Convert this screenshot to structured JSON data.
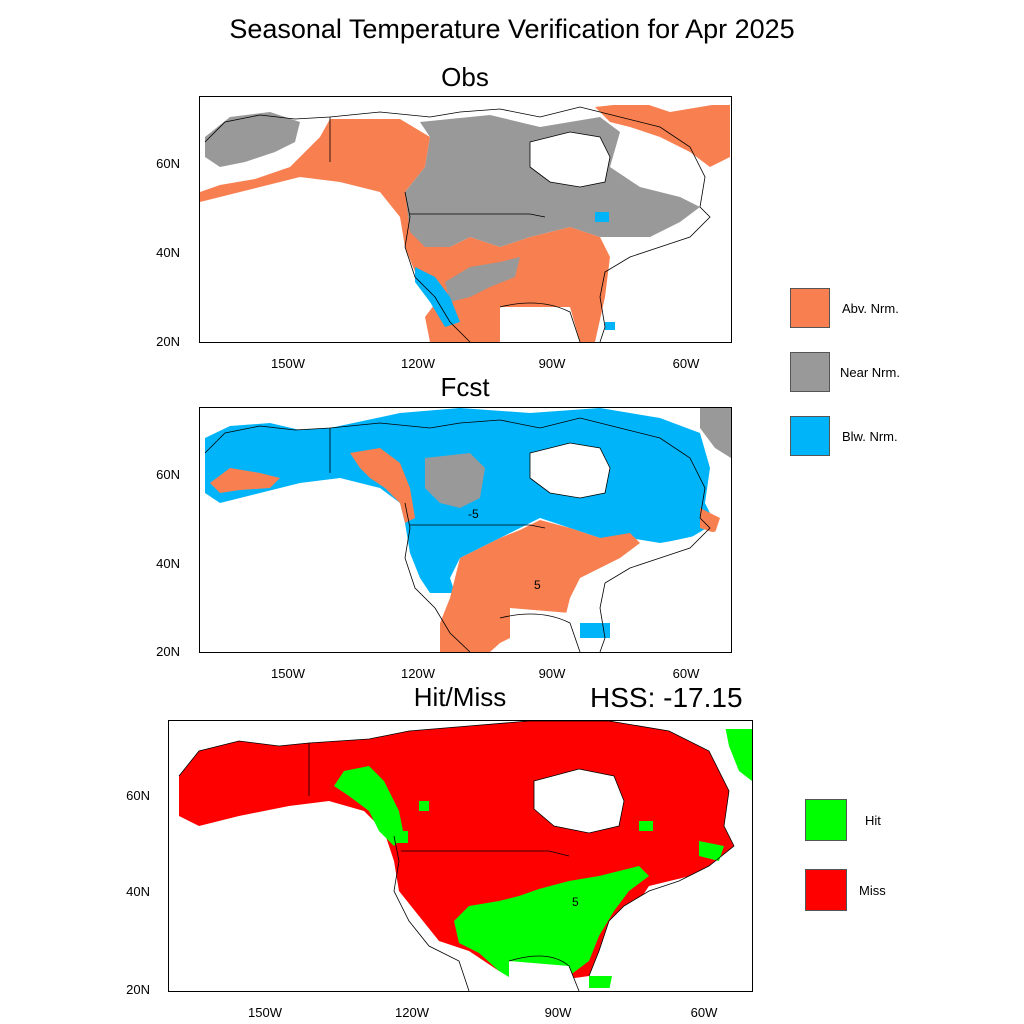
{
  "title": "Seasonal Temperature Verification for Apr 2025",
  "colors": {
    "above": "#f77f50",
    "near": "#999999",
    "below": "#00b4fa",
    "hit": "#00ff00",
    "miss": "#ff0000",
    "land_outline": "#000000"
  },
  "panels": {
    "obs": {
      "title": "Obs",
      "lat_labels": [
        "60N",
        "40N",
        "20N"
      ],
      "lon_labels": [
        "150W",
        "120W",
        "90W",
        "60W"
      ]
    },
    "fcst": {
      "title": "Fcst",
      "lat_labels": [
        "60N",
        "40N",
        "20N"
      ],
      "lon_labels": [
        "150W",
        "120W",
        "90W",
        "60W"
      ],
      "contour_labels": [
        "-5",
        "5"
      ]
    },
    "hitmiss": {
      "title": "Hit/Miss",
      "score": "HSS: -17.15",
      "lat_labels": [
        "60N",
        "40N",
        "20N"
      ],
      "lon_labels": [
        "150W",
        "120W",
        "90W",
        "60W"
      ],
      "contour_labels": [
        "5"
      ]
    }
  },
  "legend_terciles": [
    {
      "label": "Abv. Nrm.",
      "color_key": "above"
    },
    {
      "label": "Near Nrm.",
      "color_key": "near"
    },
    {
      "label": "Blw. Nrm.",
      "color_key": "below"
    }
  ],
  "legend_hitmiss": [
    {
      "label": "Hit",
      "color_key": "hit"
    },
    {
      "label": "Miss",
      "color_key": "miss"
    }
  ]
}
